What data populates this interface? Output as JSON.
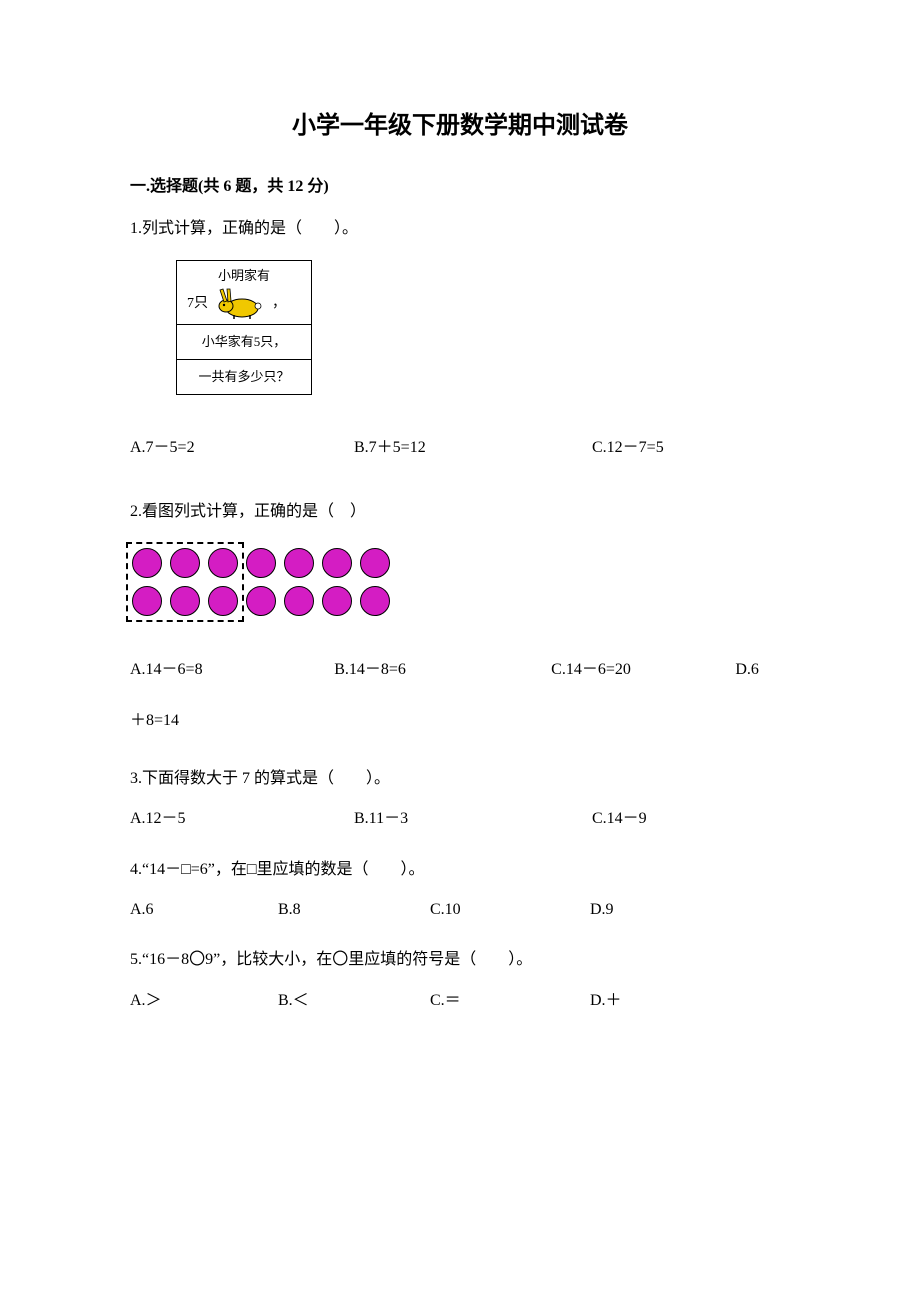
{
  "title": "小学一年级下册数学期中测试卷",
  "section1": {
    "header": "一.选择题(共 6 题，共 12 分)"
  },
  "q1": {
    "text": "1.列式计算，正确的是（　　）。",
    "box": {
      "line1": "小明家有",
      "count": "7只",
      "comma": "，",
      "line2": "小华家有5只，",
      "line3": "一共有多少只？"
    },
    "rabbit_color": "#f0c800",
    "optA": "A.7－5=2",
    "optB": "B.7＋5=12",
    "optC": "C.12－7=5",
    "colA_width": 224,
    "colB_width": 238,
    "colC_width": 180
  },
  "q2": {
    "text": "2.看图列式计算，正确的是（　）",
    "circle_color": "#d41dc3",
    "circle_border": "#000000",
    "rows": [
      [
        1,
        1,
        1,
        1,
        1,
        1,
        1
      ],
      [
        1,
        1,
        1,
        1,
        1,
        1,
        1
      ]
    ],
    "dashed_circles": 3,
    "optA": "A.14－6=8",
    "optB": "B.14－8=6",
    "optC": "C.14－6=20",
    "optD": "D.6",
    "continuation": "＋8=14",
    "colA_width": 224,
    "colB_width": 238,
    "colC_width": 202,
    "colD_width": 60
  },
  "q3": {
    "text": "3.下面得数大于 7 的算式是（　　）。",
    "optA": "A.12－5",
    "optB": "B.11－3",
    "optC": "C.14－9",
    "colA_width": 224,
    "colB_width": 238,
    "colC_width": 180
  },
  "q4": {
    "text": "4.“14－□=6”，在□里应填的数是（　　）。",
    "optA": "A.6",
    "optB": "B.8",
    "optC": "C.10",
    "optD": "D.9",
    "colA_width": 148,
    "colB_width": 152,
    "colC_width": 160,
    "colD_width": 100
  },
  "q5": {
    "text": "5.“16－8〇9”，比较大小，在〇里应填的符号是（　　）。",
    "optA": "A.＞",
    "optB": "B.＜",
    "optC": "C.＝",
    "optD": "D.＋",
    "colA_width": 148,
    "colB_width": 152,
    "colC_width": 160,
    "colD_width": 100
  }
}
